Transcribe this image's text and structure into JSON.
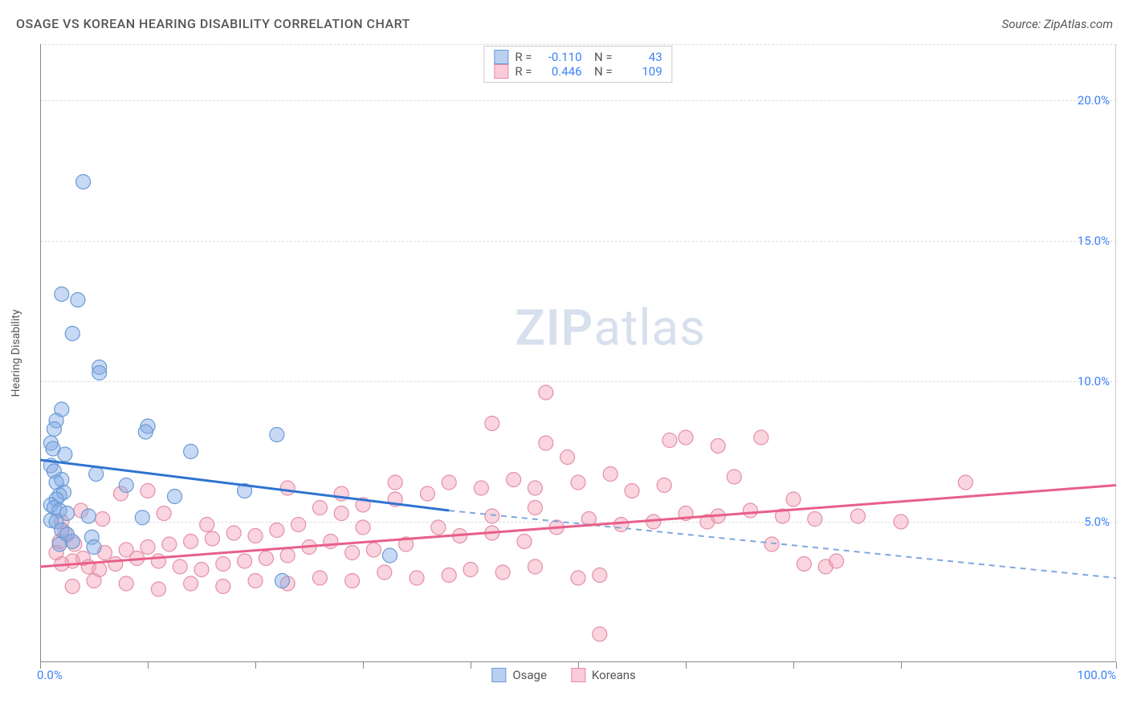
{
  "header": {
    "title": "OSAGE VS KOREAN HEARING DISABILITY CORRELATION CHART",
    "source": "Source: ZipAtlas.com"
  },
  "watermark": {
    "zip": "ZIP",
    "atlas": "atlas"
  },
  "chart": {
    "type": "scatter",
    "y_axis_label": "Hearing Disability",
    "xlim": [
      0,
      100
    ],
    "ylim": [
      0,
      22
    ],
    "y_ticks": [
      5,
      10,
      15,
      20
    ],
    "y_tick_labels": [
      "5.0%",
      "10.0%",
      "15.0%",
      "20.0%"
    ],
    "x_tick_positions": [
      0,
      10,
      20,
      30,
      40,
      50,
      60,
      70,
      80,
      100
    ],
    "x_min_label": "0.0%",
    "x_max_label": "100.0%",
    "grid_color": "#dcdcdc",
    "background_color": "#ffffff",
    "series": [
      {
        "name": "Osage",
        "marker_fill": "rgba(130,170,230,0.45)",
        "marker_stroke": "#6a9ad4",
        "line_color": "#2f73d1",
        "dash_color": "#7fa8dd",
        "marker_radius": 9,
        "R": "-0.110",
        "N": "43",
        "trend_solid": {
          "x1": 0,
          "y1": 7.2,
          "x2": 38,
          "y2": 5.4
        },
        "trend_dash": {
          "x1": 38,
          "y1": 5.4,
          "x2": 100,
          "y2": 3.0
        },
        "points": [
          [
            4,
            17.1
          ],
          [
            2,
            13.1
          ],
          [
            3.5,
            12.9
          ],
          [
            3,
            11.7
          ],
          [
            5.5,
            10.5
          ],
          [
            5.5,
            10.3
          ],
          [
            2,
            9.0
          ],
          [
            1.5,
            8.6
          ],
          [
            1.3,
            8.3
          ],
          [
            10,
            8.4
          ],
          [
            9.8,
            8.2
          ],
          [
            22,
            8.1
          ],
          [
            1.0,
            7.8
          ],
          [
            1.2,
            7.6
          ],
          [
            2.3,
            7.4
          ],
          [
            14,
            7.5
          ],
          [
            1.0,
            7.0
          ],
          [
            1.3,
            6.8
          ],
          [
            5.2,
            6.7
          ],
          [
            2.0,
            6.5
          ],
          [
            1.5,
            6.4
          ],
          [
            8,
            6.3
          ],
          [
            19,
            6.1
          ],
          [
            2.2,
            6.05
          ],
          [
            1.8,
            5.95
          ],
          [
            1.5,
            5.8
          ],
          [
            12.5,
            5.9
          ],
          [
            1.0,
            5.6
          ],
          [
            1.3,
            5.5
          ],
          [
            1.8,
            5.4
          ],
          [
            2.5,
            5.3
          ],
          [
            4.5,
            5.2
          ],
          [
            9.5,
            5.15
          ],
          [
            1.0,
            5.05
          ],
          [
            1.5,
            5.0
          ],
          [
            2.0,
            4.7
          ],
          [
            2.5,
            4.55
          ],
          [
            4.8,
            4.45
          ],
          [
            32.5,
            3.8
          ],
          [
            22.5,
            2.9
          ],
          [
            5.0,
            4.1
          ],
          [
            3.0,
            4.3
          ],
          [
            1.8,
            4.2
          ]
        ]
      },
      {
        "name": "Koreans",
        "marker_fill": "rgba(245,160,185,0.45)",
        "marker_stroke": "#e38fa8",
        "line_color": "#e85f8a",
        "marker_radius": 9,
        "R": "0.446",
        "N": "109",
        "trend_solid": {
          "x1": 0,
          "y1": 3.4,
          "x2": 100,
          "y2": 6.3
        },
        "points": [
          [
            47,
            9.6
          ],
          [
            42,
            8.5
          ],
          [
            47,
            7.8
          ],
          [
            49,
            7.3
          ],
          [
            60,
            8.0
          ],
          [
            63,
            7.7
          ],
          [
            67,
            8.0
          ],
          [
            64.5,
            6.6
          ],
          [
            58,
            6.3
          ],
          [
            55,
            6.1
          ],
          [
            53,
            6.7
          ],
          [
            50,
            6.4
          ],
          [
            44,
            6.5
          ],
          [
            41,
            6.2
          ],
          [
            38,
            6.4
          ],
          [
            36,
            6.0
          ],
          [
            33,
            5.8
          ],
          [
            30,
            5.6
          ],
          [
            28,
            5.3
          ],
          [
            26,
            5.5
          ],
          [
            24,
            4.9
          ],
          [
            22,
            4.7
          ],
          [
            20,
            4.5
          ],
          [
            18,
            4.6
          ],
          [
            16,
            4.4
          ],
          [
            14,
            4.3
          ],
          [
            12,
            4.2
          ],
          [
            10,
            4.1
          ],
          [
            8,
            4.0
          ],
          [
            6,
            3.9
          ],
          [
            4,
            3.7
          ],
          [
            3,
            3.6
          ],
          [
            2,
            3.5
          ],
          [
            1.5,
            3.9
          ],
          [
            1.8,
            4.3
          ],
          [
            2.3,
            4.6
          ],
          [
            3.2,
            4.2
          ],
          [
            4.5,
            3.4
          ],
          [
            5.5,
            3.3
          ],
          [
            7,
            3.5
          ],
          [
            9,
            3.7
          ],
          [
            11,
            3.6
          ],
          [
            13,
            3.4
          ],
          [
            15,
            3.3
          ],
          [
            17,
            3.5
          ],
          [
            19,
            3.6
          ],
          [
            21,
            3.7
          ],
          [
            23,
            3.8
          ],
          [
            25,
            4.1
          ],
          [
            27,
            4.3
          ],
          [
            29,
            3.9
          ],
          [
            31,
            4.0
          ],
          [
            34,
            4.2
          ],
          [
            37,
            4.8
          ],
          [
            39,
            4.5
          ],
          [
            42,
            4.6
          ],
          [
            45,
            4.3
          ],
          [
            48,
            4.8
          ],
          [
            51,
            5.1
          ],
          [
            54,
            4.9
          ],
          [
            57,
            5.0
          ],
          [
            60,
            5.3
          ],
          [
            63,
            5.2
          ],
          [
            66,
            5.4
          ],
          [
            69,
            5.2
          ],
          [
            72,
            5.1
          ],
          [
            71,
            3.5
          ],
          [
            73,
            3.4
          ],
          [
            52,
            1.0
          ],
          [
            52,
            3.1
          ],
          [
            50,
            3.0
          ],
          [
            46,
            3.4
          ],
          [
            43,
            3.2
          ],
          [
            40,
            3.3
          ],
          [
            38,
            3.1
          ],
          [
            35,
            3.0
          ],
          [
            32,
            3.2
          ],
          [
            29,
            2.9
          ],
          [
            26,
            3.0
          ],
          [
            23,
            2.8
          ],
          [
            20,
            2.9
          ],
          [
            17,
            2.7
          ],
          [
            14,
            2.8
          ],
          [
            11,
            2.6
          ],
          [
            8,
            2.8
          ],
          [
            5,
            2.9
          ],
          [
            3,
            2.7
          ],
          [
            86,
            6.4
          ],
          [
            80,
            5.0
          ],
          [
            76,
            5.2
          ],
          [
            74,
            3.6
          ],
          [
            70,
            5.8
          ],
          [
            68,
            4.2
          ],
          [
            62,
            5.0
          ],
          [
            58.5,
            7.9
          ],
          [
            46,
            6.2
          ],
          [
            46,
            5.5
          ],
          [
            42,
            5.2
          ],
          [
            33,
            6.4
          ],
          [
            30,
            4.8
          ],
          [
            28,
            6.0
          ],
          [
            23,
            6.2
          ],
          [
            10,
            6.1
          ],
          [
            7.5,
            6.0
          ],
          [
            5.8,
            5.1
          ],
          [
            3.8,
            5.4
          ],
          [
            2.0,
            5.0
          ],
          [
            11.5,
            5.3
          ],
          [
            15.5,
            4.9
          ]
        ]
      }
    ],
    "legend_bottom": [
      {
        "label": "Osage",
        "fill": "rgba(130,170,230,0.55)",
        "stroke": "#6a9ad4"
      },
      {
        "label": "Koreans",
        "fill": "rgba(245,160,185,0.55)",
        "stroke": "#e38fa8"
      }
    ]
  }
}
